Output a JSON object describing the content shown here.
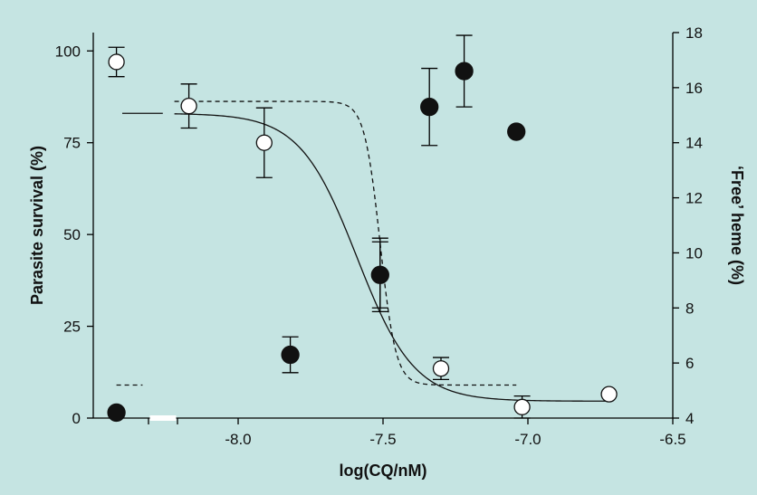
{
  "chart_data": {
    "type": "scatter",
    "title": "",
    "xlabel": "log(CQ/nM)",
    "ylabel_left": "Parasite survival (%)",
    "ylabel_right": "‘Free’ heme (%)",
    "xlim": [
      -8.5,
      -6.5
    ],
    "ylim_left": [
      0,
      105
    ],
    "ylim_right": [
      4,
      18
    ],
    "x_axis_break": true,
    "x_ticks": [
      -8.0,
      -7.5,
      -7.0,
      -6.5
    ],
    "x_tick_labels": [
      "-8.0",
      "-7.5",
      "-7.0",
      "-6.5"
    ],
    "y_left_ticks": [
      0,
      25,
      50,
      75,
      100
    ],
    "y_left_tick_labels": [
      "0",
      "25",
      "50",
      "75",
      "100"
    ],
    "y_right_ticks": [
      4,
      6,
      8,
      10,
      12,
      14,
      16,
      18
    ],
    "y_right_tick_labels": [
      "4",
      "6",
      "8",
      "10",
      "12",
      "14",
      "16",
      "18"
    ],
    "grid": false,
    "series": [
      {
        "marker": "open-circle",
        "axis": "left",
        "points": [
          {
            "x": -8.42,
            "y": 97,
            "err": 4
          },
          {
            "x": -8.17,
            "y": 85,
            "err": 6
          },
          {
            "x": -7.91,
            "y": 75,
            "err": 9.5
          },
          {
            "x": -7.51,
            "y": 39,
            "err": 10
          },
          {
            "x": -7.3,
            "y": 13.5,
            "err": 3
          },
          {
            "x": -7.02,
            "y": 3,
            "err": 3
          },
          {
            "x": -6.72,
            "y": 6.5,
            "err": 0
          }
        ]
      },
      {
        "marker": "filled-circle",
        "axis": "right",
        "points": [
          {
            "x": -8.42,
            "y": 4.2,
            "err": 0
          },
          {
            "x": -7.82,
            "y": 6.3,
            "err": 0.65
          },
          {
            "x": -7.51,
            "y": 9.2,
            "err": 1.2
          },
          {
            "x": -7.34,
            "y": 15.3,
            "err": 1.4
          },
          {
            "x": -7.22,
            "y": 16.6,
            "err": 1.3
          },
          {
            "x": -7.04,
            "y": 14.4,
            "err": 0
          }
        ]
      }
    ],
    "fits": [
      {
        "axis": "left",
        "style": "solid",
        "bottom": 4.6,
        "top": 83,
        "ec50": -7.59,
        "hill": 4.4,
        "x_start": -8.22,
        "x_end": -6.72,
        "pre_break_segment": {
          "x": [
            -8.4,
            -8.26
          ],
          "y": 83
        }
      },
      {
        "axis": "right",
        "style": "dashed",
        "bottom": 5.2,
        "top": 15.5,
        "ec50": -7.51,
        "hill": 16,
        "x_start": -8.22,
        "x_end": -7.04,
        "pre_break_segment": {
          "x": [
            -8.42,
            -8.33
          ],
          "y": 5.2
        }
      }
    ]
  }
}
